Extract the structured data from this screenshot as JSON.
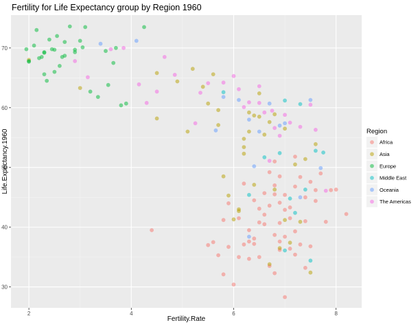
{
  "chart_data": {
    "type": "scatter",
    "title": "Fertility for Life Expectancy group by Region 1960",
    "xlabel": "Fertility.Rate",
    "ylabel": "Life.Expectancy.1960",
    "xlim": [
      1.65,
      8.5
    ],
    "ylim": [
      26.5,
      75.5
    ],
    "x_ticks": [
      2,
      4,
      6,
      8
    ],
    "y_ticks": [
      30,
      40,
      50,
      60,
      70
    ],
    "grid": true,
    "legend_position": "right",
    "legend_title": "Region",
    "series": [
      {
        "name": "Africa",
        "color": "#F8766D",
        "points": [
          [
            5.6,
            37.5
          ],
          [
            5.7,
            35.3
          ],
          [
            5.8,
            41.2
          ],
          [
            5.9,
            44.0
          ],
          [
            6.0,
            30.4
          ],
          [
            6.1,
            35.0
          ],
          [
            6.2,
            37.1
          ],
          [
            6.2,
            47.3
          ],
          [
            6.3,
            39.5
          ],
          [
            6.3,
            34.7
          ],
          [
            6.4,
            37.2
          ],
          [
            6.4,
            44.5
          ],
          [
            6.5,
            35.0
          ],
          [
            6.5,
            40.8
          ],
          [
            6.6,
            42.1
          ],
          [
            6.6,
            45.7
          ],
          [
            6.7,
            49.2
          ],
          [
            6.7,
            33.5
          ],
          [
            6.7,
            43.6
          ],
          [
            6.8,
            47.0
          ],
          [
            6.8,
            38.7
          ],
          [
            6.8,
            51.0
          ],
          [
            6.9,
            36.2
          ],
          [
            6.9,
            40.7
          ],
          [
            6.9,
            44.1
          ],
          [
            6.9,
            48.5
          ],
          [
            7.0,
            38.4
          ],
          [
            7.0,
            45.4
          ],
          [
            7.0,
            28.3
          ],
          [
            7.1,
            41.5
          ],
          [
            7.1,
            36.4
          ],
          [
            7.1,
            43.3
          ],
          [
            7.2,
            39.3
          ],
          [
            7.2,
            46.8
          ],
          [
            7.2,
            51.8
          ],
          [
            7.3,
            37.1
          ],
          [
            7.3,
            48.4
          ],
          [
            7.4,
            45.0
          ],
          [
            7.4,
            41.0
          ],
          [
            7.4,
            33.2
          ],
          [
            7.5,
            47.6
          ],
          [
            7.5,
            36.8
          ],
          [
            7.6,
            44.4
          ],
          [
            7.6,
            46.2
          ],
          [
            7.7,
            49.0
          ],
          [
            7.8,
            40.9
          ],
          [
            7.9,
            46.2
          ],
          [
            8.0,
            46.3
          ],
          [
            8.2,
            42.2
          ],
          [
            6.8,
            32.3
          ],
          [
            6.4,
            38.1
          ],
          [
            6.6,
            40.5
          ],
          [
            7.0,
            42.9
          ],
          [
            5.9,
            36.7
          ],
          [
            6.5,
            43.1
          ],
          [
            7.2,
            35.4
          ],
          [
            6.8,
            45.5
          ],
          [
            6.1,
            41.5
          ],
          [
            5.5,
            37.0
          ],
          [
            6.9,
            37.6
          ],
          [
            4.4,
            39.5
          ],
          [
            6.3,
            37.6
          ],
          [
            5.8,
            32.1
          ]
        ]
      },
      {
        "name": "Asia",
        "color": "#B79F00",
        "points": [
          [
            2.0,
            68.0
          ],
          [
            3.0,
            63.3
          ],
          [
            4.5,
            58.2
          ],
          [
            4.5,
            65.8
          ],
          [
            4.9,
            64.4
          ],
          [
            5.2,
            66.5
          ],
          [
            5.4,
            63.5
          ],
          [
            5.5,
            60.7
          ],
          [
            5.7,
            57.1
          ],
          [
            5.7,
            59.6
          ],
          [
            5.8,
            48.5
          ],
          [
            5.9,
            45.3
          ],
          [
            6.0,
            41.3
          ],
          [
            6.1,
            42.7
          ],
          [
            6.1,
            43.0
          ],
          [
            6.2,
            52.3
          ],
          [
            6.2,
            54.8
          ],
          [
            6.3,
            56.0
          ],
          [
            6.3,
            59.2
          ],
          [
            6.4,
            58.7
          ],
          [
            6.5,
            58.5
          ],
          [
            6.5,
            62.4
          ],
          [
            6.6,
            55.5
          ],
          [
            6.7,
            57.6
          ],
          [
            6.8,
            46.3
          ],
          [
            6.8,
            58.9
          ],
          [
            6.9,
            36.5
          ],
          [
            7.0,
            41.2
          ],
          [
            7.0,
            56.5
          ],
          [
            7.1,
            37.4
          ],
          [
            7.2,
            50.5
          ],
          [
            7.3,
            40.9
          ],
          [
            7.4,
            51.4
          ],
          [
            7.5,
            32.4
          ],
          [
            7.6,
            53.9
          ],
          [
            6.4,
            47.1
          ],
          [
            6.2,
            53.4
          ],
          [
            5.6,
            65.6
          ],
          [
            6.7,
            33.8
          ],
          [
            5.1,
            56.0
          ]
        ]
      },
      {
        "name": "Europe",
        "color": "#00BA38",
        "points": [
          [
            1.95,
            69.8
          ],
          [
            2.0,
            67.8
          ],
          [
            2.1,
            70.4
          ],
          [
            2.15,
            73.0
          ],
          [
            2.2,
            68.3
          ],
          [
            2.25,
            68.5
          ],
          [
            2.3,
            69.2
          ],
          [
            2.3,
            69.3
          ],
          [
            2.3,
            65.6
          ],
          [
            2.35,
            64.5
          ],
          [
            2.4,
            71.4
          ],
          [
            2.45,
            69.8
          ],
          [
            2.5,
            69.7
          ],
          [
            2.5,
            66.0
          ],
          [
            2.55,
            72.0
          ],
          [
            2.6,
            67.0
          ],
          [
            2.65,
            68.5
          ],
          [
            2.7,
            71.0
          ],
          [
            2.7,
            68.7
          ],
          [
            2.8,
            73.6
          ],
          [
            2.9,
            69.7
          ],
          [
            2.9,
            69.3
          ],
          [
            3.0,
            71.2
          ],
          [
            3.05,
            70.1
          ],
          [
            3.1,
            73.5
          ],
          [
            3.2,
            62.7
          ],
          [
            3.35,
            61.8
          ],
          [
            3.5,
            69.5
          ],
          [
            3.55,
            63.8
          ],
          [
            3.65,
            67.5
          ],
          [
            3.7,
            70.0
          ],
          [
            3.8,
            60.4
          ],
          [
            3.9,
            60.7
          ],
          [
            4.25,
            73.5
          ],
          [
            2.0,
            67.7
          ]
        ]
      },
      {
        "name": "Middle East",
        "color": "#00BFC4",
        "points": [
          [
            5.8,
            62.6
          ],
          [
            6.3,
            45.4
          ],
          [
            6.6,
            51.7
          ],
          [
            6.9,
            52.4
          ],
          [
            7.0,
            61.2
          ],
          [
            7.1,
            44.8
          ],
          [
            7.2,
            42.4
          ],
          [
            7.3,
            60.6
          ],
          [
            7.4,
            46.3
          ],
          [
            7.5,
            34.4
          ],
          [
            7.6,
            52.8
          ],
          [
            7.75,
            52.5
          ],
          [
            7.0,
            36.1
          ]
        ]
      },
      {
        "name": "Oceania",
        "color": "#619CFF",
        "points": [
          [
            3.4,
            70.7
          ],
          [
            4.1,
            71.2
          ],
          [
            5.65,
            56.2
          ],
          [
            6.1,
            61.3
          ],
          [
            6.4,
            50.2
          ],
          [
            6.5,
            56.0
          ],
          [
            6.7,
            60.7
          ],
          [
            6.9,
            57.0
          ],
          [
            7.3,
            45.0
          ],
          [
            7.5,
            61.3
          ],
          [
            7.7,
            49.9
          ],
          [
            6.3,
            38.4
          ],
          [
            7.0,
            57.4
          ],
          [
            5.8,
            61.8
          ],
          [
            6.3,
            58.0
          ]
        ]
      },
      {
        "name": "The Americas",
        "color": "#F564E3",
        "points": [
          [
            2.9,
            67.8
          ],
          [
            3.15,
            65.1
          ],
          [
            3.6,
            69.8
          ],
          [
            3.85,
            70.0
          ],
          [
            4.15,
            63.9
          ],
          [
            4.3,
            60.8
          ],
          [
            4.5,
            62.7
          ],
          [
            4.65,
            68.5
          ],
          [
            4.85,
            65.5
          ],
          [
            5.25,
            57.4
          ],
          [
            5.35,
            62.5
          ],
          [
            5.5,
            64.1
          ],
          [
            5.8,
            64.2
          ],
          [
            6.0,
            65.3
          ],
          [
            6.1,
            63.1
          ],
          [
            6.2,
            60.1
          ],
          [
            6.3,
            60.9
          ],
          [
            6.5,
            63.6
          ],
          [
            6.5,
            60.8
          ],
          [
            6.6,
            59.2
          ],
          [
            6.75,
            59.5
          ],
          [
            6.8,
            56.6
          ],
          [
            6.9,
            55.3
          ],
          [
            7.0,
            58.8
          ],
          [
            7.1,
            57.5
          ],
          [
            7.3,
            56.8
          ],
          [
            7.5,
            60.5
          ],
          [
            7.6,
            56.3
          ],
          [
            7.8,
            46.1
          ],
          [
            6.7,
            51.1
          ]
        ]
      }
    ]
  }
}
